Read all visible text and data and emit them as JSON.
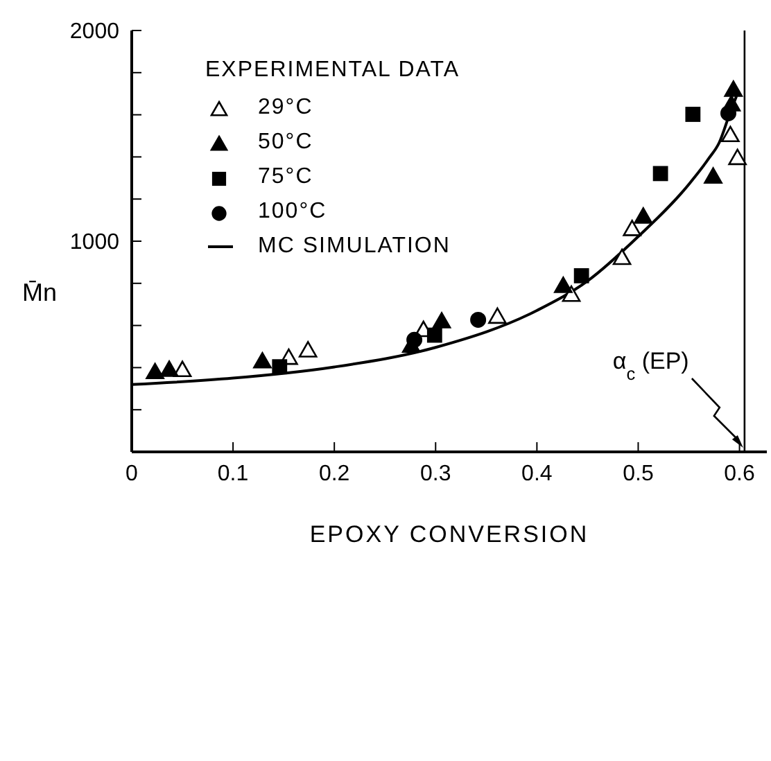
{
  "chart_data": {
    "type": "scatter",
    "xlabel": "EPOXY CONVERSION",
    "ylabel": "M̄n",
    "legend_title": "EXPERIMENTAL DATA",
    "xlim": [
      0,
      0.627
    ],
    "xticks": [
      0,
      0.1,
      0.2,
      0.3,
      0.4,
      0.5,
      0.6
    ],
    "ylim": [
      0,
      2000
    ],
    "yticks": [
      {
        "value": 0,
        "label": null
      },
      {
        "value": 200,
        "label": null
      },
      {
        "value": 400,
        "label": null
      },
      {
        "value": 600,
        "label": null
      },
      {
        "value": 800,
        "label": null
      },
      1000,
      {
        "value": 1200,
        "label": null
      },
      {
        "value": 1400,
        "label": null
      },
      {
        "value": 1600,
        "label": null
      },
      {
        "value": 1800,
        "label": null
      },
      2000
    ],
    "legend": "top left",
    "series": [
      {
        "name": "29°C",
        "marker": "triangle",
        "color": "#ffffff",
        "x": [
          0.05,
          0.155,
          0.174,
          0.288,
          0.361,
          0.434,
          0.484,
          0.494,
          0.591,
          0.598
        ],
        "values": [
          389,
          447,
          482,
          579,
          642,
          746,
          921,
          1058,
          1504,
          1395
        ]
      },
      {
        "name": "50°C",
        "marker": "triangle",
        "color": "#000000",
        "x": [
          0.023,
          0.037,
          0.129,
          0.276,
          0.306,
          0.426,
          0.505,
          0.574,
          0.592,
          0.594
        ],
        "values": [
          379,
          390,
          430,
          504,
          620,
          788,
          1117,
          1307,
          1650,
          1719
        ]
      },
      {
        "name": "75°C",
        "marker": "square",
        "color": "#000000",
        "x": [
          0.146,
          0.299,
          0.444,
          0.522,
          0.554
        ],
        "values": [
          404,
          554,
          836,
          1321,
          1602
        ]
      },
      {
        "name": "100°C",
        "marker": "circle",
        "color": "#000000",
        "x": [
          0.279,
          0.342,
          0.589
        ],
        "values": [
          532,
          627,
          1607
        ]
      },
      {
        "name": "MC SIMULATION",
        "type": "line",
        "marker": "none",
        "line_style": "solid",
        "color": "#000000",
        "x": [
          0,
          0.1,
          0.2,
          0.3,
          0.4,
          0.45,
          0.5,
          0.55,
          0.57,
          0.58,
          0.59,
          0.597
        ],
        "values": [
          320,
          350,
          403,
          496,
          671,
          811,
          1022,
          1270,
          1395,
          1468,
          1600,
          1688
        ]
      }
    ],
    "ref_lines": [
      {
        "axis": "x",
        "value": 0.605,
        "label": "α$_{c}$ (EP)",
        "color": "#000000",
        "line_style": "solid"
      }
    ]
  }
}
